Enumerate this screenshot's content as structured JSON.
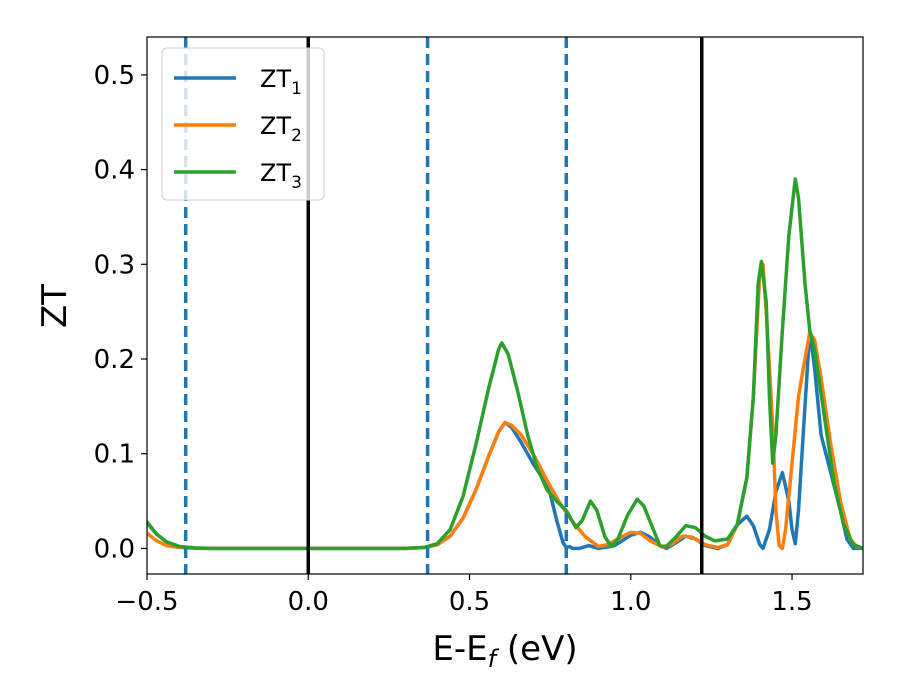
{
  "chart_data": {
    "type": "line",
    "xlabel": "E-E_f (eV)",
    "xlabel_parts": {
      "main": "E-E",
      "sub": "f",
      "rest": " (eV)"
    },
    "ylabel": "ZT",
    "xlim": [
      -0.5,
      1.72
    ],
    "ylim": [
      -0.027,
      0.54
    ],
    "xticks": [
      -0.5,
      0.0,
      0.5,
      1.0,
      1.5
    ],
    "xtick_labels": [
      "−0.5",
      "0.0",
      "0.5",
      "1.0",
      "1.5"
    ],
    "yticks": [
      0.0,
      0.1,
      0.2,
      0.3,
      0.4,
      0.5
    ],
    "ytick_labels": [
      "0.0",
      "0.1",
      "0.2",
      "0.3",
      "0.4",
      "0.5"
    ],
    "grid": false,
    "legend_position": "top-left",
    "vlines_solid": [
      0.0,
      1.22
    ],
    "vlines_dashed": [
      -0.38,
      0.37,
      0.8
    ],
    "vline_solid_color": "#000000",
    "vline_dashed_color": "#1f77b4",
    "series": [
      {
        "name": "ZT_1",
        "legend_main": "ZT",
        "legend_sub": "1",
        "color": "#1f77b4",
        "points": [
          [
            -0.5,
            0.027
          ],
          [
            -0.47,
            0.015
          ],
          [
            -0.44,
            0.007
          ],
          [
            -0.4,
            0.002
          ],
          [
            -0.35,
            0.0005
          ],
          [
            -0.3,
            0.0
          ],
          [
            0.3,
            0.0
          ],
          [
            0.36,
            0.001
          ],
          [
            0.4,
            0.004
          ],
          [
            0.44,
            0.013
          ],
          [
            0.48,
            0.032
          ],
          [
            0.52,
            0.062
          ],
          [
            0.56,
            0.098
          ],
          [
            0.59,
            0.123
          ],
          [
            0.61,
            0.133
          ],
          [
            0.63,
            0.128
          ],
          [
            0.66,
            0.112
          ],
          [
            0.7,
            0.088
          ],
          [
            0.73,
            0.072
          ],
          [
            0.75,
            0.058
          ],
          [
            0.77,
            0.03
          ],
          [
            0.79,
            0.006
          ],
          [
            0.8,
            0.001
          ],
          [
            0.81,
            0.002
          ],
          [
            0.82,
            0.0
          ],
          [
            0.84,
            0.0
          ],
          [
            0.87,
            0.003
          ],
          [
            0.9,
            0.0
          ],
          [
            0.95,
            0.003
          ],
          [
            1.0,
            0.014
          ],
          [
            1.03,
            0.017
          ],
          [
            1.06,
            0.012
          ],
          [
            1.09,
            0.003
          ],
          [
            1.11,
            0.0
          ],
          [
            1.14,
            0.006
          ],
          [
            1.17,
            0.013
          ],
          [
            1.2,
            0.01
          ],
          [
            1.23,
            0.003
          ],
          [
            1.27,
            0.0
          ],
          [
            1.3,
            0.004
          ],
          [
            1.33,
            0.025
          ],
          [
            1.36,
            0.034
          ],
          [
            1.38,
            0.024
          ],
          [
            1.4,
            0.004
          ],
          [
            1.41,
            0.0
          ],
          [
            1.43,
            0.02
          ],
          [
            1.45,
            0.06
          ],
          [
            1.47,
            0.08
          ],
          [
            1.49,
            0.05
          ],
          [
            1.5,
            0.02
          ],
          [
            1.51,
            0.005
          ],
          [
            1.52,
            0.04
          ],
          [
            1.54,
            0.15
          ],
          [
            1.555,
            0.23
          ],
          [
            1.57,
            0.19
          ],
          [
            1.59,
            0.12
          ],
          [
            1.62,
            0.08
          ],
          [
            1.65,
            0.04
          ],
          [
            1.67,
            0.01
          ],
          [
            1.69,
            0.0
          ],
          [
            1.72,
            0.0
          ]
        ]
      },
      {
        "name": "ZT_2",
        "legend_main": "ZT",
        "legend_sub": "2",
        "color": "#ff7f0e",
        "points": [
          [
            -0.5,
            0.016
          ],
          [
            -0.47,
            0.008
          ],
          [
            -0.44,
            0.003
          ],
          [
            -0.4,
            0.001
          ],
          [
            -0.35,
            0.0
          ],
          [
            0.3,
            0.0
          ],
          [
            0.36,
            0.001
          ],
          [
            0.4,
            0.004
          ],
          [
            0.44,
            0.013
          ],
          [
            0.48,
            0.032
          ],
          [
            0.52,
            0.062
          ],
          [
            0.56,
            0.098
          ],
          [
            0.59,
            0.123
          ],
          [
            0.61,
            0.133
          ],
          [
            0.63,
            0.13
          ],
          [
            0.66,
            0.12
          ],
          [
            0.7,
            0.098
          ],
          [
            0.74,
            0.072
          ],
          [
            0.78,
            0.048
          ],
          [
            0.82,
            0.028
          ],
          [
            0.86,
            0.012
          ],
          [
            0.9,
            0.002
          ],
          [
            0.93,
            0.004
          ],
          [
            0.97,
            0.012
          ],
          [
            1.0,
            0.017
          ],
          [
            1.03,
            0.016
          ],
          [
            1.06,
            0.008
          ],
          [
            1.1,
            0.001
          ],
          [
            1.13,
            0.005
          ],
          [
            1.16,
            0.013
          ],
          [
            1.19,
            0.012
          ],
          [
            1.23,
            0.004
          ],
          [
            1.27,
            0.001
          ],
          [
            1.3,
            0.004
          ],
          [
            1.33,
            0.025
          ],
          [
            1.36,
            0.075
          ],
          [
            1.38,
            0.16
          ],
          [
            1.4,
            0.29
          ],
          [
            1.41,
            0.3
          ],
          [
            1.42,
            0.25
          ],
          [
            1.44,
            0.13
          ],
          [
            1.45,
            0.04
          ],
          [
            1.46,
            0.003
          ],
          [
            1.47,
            0.0
          ],
          [
            1.48,
            0.02
          ],
          [
            1.5,
            0.09
          ],
          [
            1.52,
            0.16
          ],
          [
            1.54,
            0.2
          ],
          [
            1.555,
            0.228
          ],
          [
            1.57,
            0.22
          ],
          [
            1.59,
            0.18
          ],
          [
            1.62,
            0.11
          ],
          [
            1.65,
            0.05
          ],
          [
            1.68,
            0.01
          ],
          [
            1.7,
            0.002
          ],
          [
            1.72,
            0.0
          ]
        ]
      },
      {
        "name": "ZT_3",
        "legend_main": "ZT",
        "legend_sub": "3",
        "color": "#2ca02c",
        "points": [
          [
            -0.5,
            0.028
          ],
          [
            -0.47,
            0.015
          ],
          [
            -0.44,
            0.007
          ],
          [
            -0.4,
            0.002
          ],
          [
            -0.35,
            0.0005
          ],
          [
            -0.3,
            0.0
          ],
          [
            0.3,
            0.0
          ],
          [
            0.36,
            0.001
          ],
          [
            0.4,
            0.005
          ],
          [
            0.44,
            0.02
          ],
          [
            0.48,
            0.055
          ],
          [
            0.52,
            0.11
          ],
          [
            0.56,
            0.17
          ],
          [
            0.59,
            0.21
          ],
          [
            0.6,
            0.217
          ],
          [
            0.62,
            0.205
          ],
          [
            0.65,
            0.165
          ],
          [
            0.68,
            0.12
          ],
          [
            0.71,
            0.085
          ],
          [
            0.74,
            0.062
          ],
          [
            0.77,
            0.05
          ],
          [
            0.8,
            0.04
          ],
          [
            0.83,
            0.022
          ],
          [
            0.85,
            0.03
          ],
          [
            0.875,
            0.05
          ],
          [
            0.895,
            0.04
          ],
          [
            0.92,
            0.012
          ],
          [
            0.94,
            0.002
          ],
          [
            0.96,
            0.01
          ],
          [
            0.99,
            0.035
          ],
          [
            1.02,
            0.052
          ],
          [
            1.04,
            0.045
          ],
          [
            1.07,
            0.02
          ],
          [
            1.09,
            0.003
          ],
          [
            1.11,
            0.002
          ],
          [
            1.14,
            0.012
          ],
          [
            1.17,
            0.024
          ],
          [
            1.2,
            0.022
          ],
          [
            1.23,
            0.013
          ],
          [
            1.26,
            0.008
          ],
          [
            1.3,
            0.01
          ],
          [
            1.33,
            0.025
          ],
          [
            1.36,
            0.075
          ],
          [
            1.38,
            0.16
          ],
          [
            1.395,
            0.28
          ],
          [
            1.405,
            0.303
          ],
          [
            1.42,
            0.26
          ],
          [
            1.43,
            0.16
          ],
          [
            1.44,
            0.09
          ],
          [
            1.45,
            0.12
          ],
          [
            1.47,
            0.23
          ],
          [
            1.49,
            0.33
          ],
          [
            1.51,
            0.39
          ],
          [
            1.52,
            0.37
          ],
          [
            1.54,
            0.28
          ],
          [
            1.555,
            0.23
          ],
          [
            1.57,
            0.21
          ],
          [
            1.6,
            0.14
          ],
          [
            1.63,
            0.07
          ],
          [
            1.66,
            0.025
          ],
          [
            1.69,
            0.004
          ],
          [
            1.72,
            0.0
          ]
        ]
      }
    ]
  }
}
